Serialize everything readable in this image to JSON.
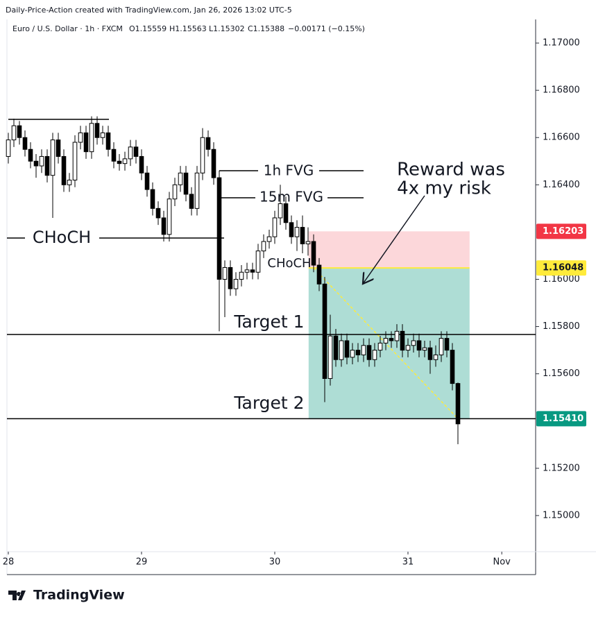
{
  "header": {
    "credit": "Daily-Price-Action created with TradingView.com, Jan 26, 2026 13:02 UTC-5",
    "symbol": "Euro / U.S. Dollar · 1h · FXCM",
    "ohlc": [
      "O1.15559",
      "H1.15563",
      "L1.15302",
      "C1.15388"
    ],
    "change": "−0.00171 (−0.15%)"
  },
  "brand": "TradingView",
  "chart_data": {
    "type": "candlestick",
    "open": [
      1.1652,
      1.1659,
      1.1665,
      1.166,
      1.1655,
      1.165,
      1.1648,
      1.1652,
      1.1644,
      1.1659,
      1.1652,
      1.164,
      1.1642,
      1.1658,
      1.1662,
      1.1654,
      1.1666,
      1.166,
      1.1662,
      1.1655,
      1.165,
      1.1649,
      1.1651,
      1.1656,
      1.1652,
      1.1645,
      1.1638,
      1.163,
      1.1626,
      1.1619,
      1.1634,
      1.164,
      1.1645,
      1.1636,
      1.163,
      1.1645,
      1.166,
      1.1655,
      1.1643,
      1.16,
      1.1605,
      1.1596,
      1.16,
      1.1603,
      1.1604,
      1.1603,
      1.1612,
      1.1616,
      1.1618,
      1.1626,
      1.1632,
      1.1624,
      1.1618,
      1.1622,
      1.1615,
      1.1616,
      1.1606,
      1.1598,
      1.1558,
      1.1576,
      1.1566,
      1.1574,
      1.1567,
      1.157,
      1.1568,
      1.1572,
      1.1566,
      1.157,
      1.1573,
      1.1575,
      1.1574,
      1.1578,
      1.157,
      1.1572,
      1.1574,
      1.157,
      1.1571,
      1.1566,
      1.1568,
      1.1575,
      1.157,
      1.15559
    ],
    "high": [
      1.1662,
      1.1668,
      1.1667,
      1.1663,
      1.1658,
      1.1653,
      1.1655,
      1.1655,
      1.1662,
      1.1662,
      1.1655,
      1.1645,
      1.1661,
      1.1665,
      1.1665,
      1.1669,
      1.1669,
      1.1665,
      1.1665,
      1.1658,
      1.1653,
      1.1654,
      1.1659,
      1.1659,
      1.1655,
      1.1648,
      1.1641,
      1.1633,
      1.1629,
      1.1637,
      1.1643,
      1.1648,
      1.1648,
      1.1639,
      1.1648,
      1.1664,
      1.1663,
      1.1658,
      1.1646,
      1.1608,
      1.1608,
      1.1603,
      1.1606,
      1.1607,
      1.1607,
      1.1615,
      1.1619,
      1.1621,
      1.1629,
      1.164,
      1.1635,
      1.1627,
      1.1625,
      1.1627,
      1.1622,
      1.1619,
      1.1609,
      1.1601,
      1.1585,
      1.1579,
      1.1577,
      1.1577,
      1.1573,
      1.1573,
      1.1575,
      1.1575,
      1.1573,
      1.1576,
      1.1578,
      1.1578,
      1.1581,
      1.1581,
      1.1575,
      1.1577,
      1.1577,
      1.1574,
      1.1574,
      1.1572,
      1.1578,
      1.1578,
      1.1573,
      1.15563
    ],
    "low": [
      1.1649,
      1.1656,
      1.1657,
      1.1652,
      1.1647,
      1.1643,
      1.1645,
      1.1641,
      1.1626,
      1.1649,
      1.1637,
      1.1637,
      1.1639,
      1.1655,
      1.1651,
      1.1651,
      1.1657,
      1.1657,
      1.1652,
      1.1647,
      1.1646,
      1.1646,
      1.1648,
      1.1649,
      1.1642,
      1.1635,
      1.1627,
      1.1623,
      1.1616,
      1.1616,
      1.1631,
      1.1637,
      1.1633,
      1.1627,
      1.1627,
      1.1642,
      1.1652,
      1.164,
      1.1578,
      1.1584,
      1.1593,
      1.1593,
      1.1597,
      1.16,
      1.16,
      1.16,
      1.1609,
      1.1613,
      1.1615,
      1.1623,
      1.1621,
      1.1615,
      1.1612,
      1.1611,
      1.161,
      1.1603,
      1.1595,
      1.1548,
      1.1555,
      1.1563,
      1.1563,
      1.1564,
      1.1564,
      1.1565,
      1.1565,
      1.1563,
      1.1563,
      1.1567,
      1.157,
      1.1571,
      1.1571,
      1.1567,
      1.1567,
      1.1569,
      1.1567,
      1.1567,
      1.156,
      1.1563,
      1.1565,
      1.1567,
      1.1553,
      1.15302
    ],
    "close": [
      1.1659,
      1.1665,
      1.166,
      1.1655,
      1.165,
      1.1648,
      1.1652,
      1.1644,
      1.1659,
      1.1652,
      1.164,
      1.1642,
      1.1658,
      1.1662,
      1.1654,
      1.1666,
      1.166,
      1.1662,
      1.1655,
      1.165,
      1.1649,
      1.1651,
      1.1656,
      1.1652,
      1.1645,
      1.1638,
      1.163,
      1.1626,
      1.1619,
      1.1634,
      1.164,
      1.1645,
      1.1636,
      1.163,
      1.1645,
      1.166,
      1.1655,
      1.1643,
      1.16,
      1.1605,
      1.1596,
      1.16,
      1.1603,
      1.1604,
      1.1603,
      1.1612,
      1.1616,
      1.1618,
      1.1626,
      1.1632,
      1.1624,
      1.1618,
      1.1622,
      1.1615,
      1.1616,
      1.1606,
      1.1598,
      1.1558,
      1.1576,
      1.1566,
      1.1574,
      1.1567,
      1.157,
      1.1568,
      1.1572,
      1.1566,
      1.157,
      1.1573,
      1.1575,
      1.1574,
      1.1578,
      1.157,
      1.1572,
      1.1574,
      1.157,
      1.1571,
      1.1566,
      1.1568,
      1.1575,
      1.157,
      1.15559,
      1.15388
    ],
    "up_color": "#ffffff",
    "down_color": "#000000",
    "ylim": [
      1.14847,
      1.171
    ],
    "yticks": [
      {
        "value": 1.17,
        "label": "1.17000"
      },
      {
        "value": 1.168,
        "label": "1.16800"
      },
      {
        "value": 1.166,
        "label": "1.16600"
      },
      {
        "value": 1.164,
        "label": "1.16400"
      },
      {
        "value": 1.16,
        "label": "1.16000"
      },
      {
        "value": 1.158,
        "label": "1.15800"
      },
      {
        "value": 1.156,
        "label": "1.15600"
      },
      {
        "value": 1.152,
        "label": "1.15200"
      },
      {
        "value": 1.15,
        "label": "1.15000"
      }
    ],
    "xlim": [
      -0.25,
      95
    ],
    "xticks": [
      {
        "value": 0,
        "label": "28"
      },
      {
        "value": 24,
        "label": "29"
      },
      {
        "value": 48,
        "label": "30"
      },
      {
        "value": 72,
        "label": "31"
      },
      {
        "value": 88.9,
        "label": "Nov"
      }
    ],
    "position": {
      "stop": 1.16203,
      "entry": 1.16048,
      "target": {
        "value": 1.1541,
        "label": "1.15410"
      },
      "stop_color": "#f23645",
      "entry_color": "#ffeb3b",
      "target_color": "#089981"
    },
    "annotations": [
      "1h FVG",
      "15m FVG",
      "CHoCH",
      "CHoCH",
      "Target 1",
      "Target 2",
      "Reward was",
      "4x my risk"
    ]
  }
}
